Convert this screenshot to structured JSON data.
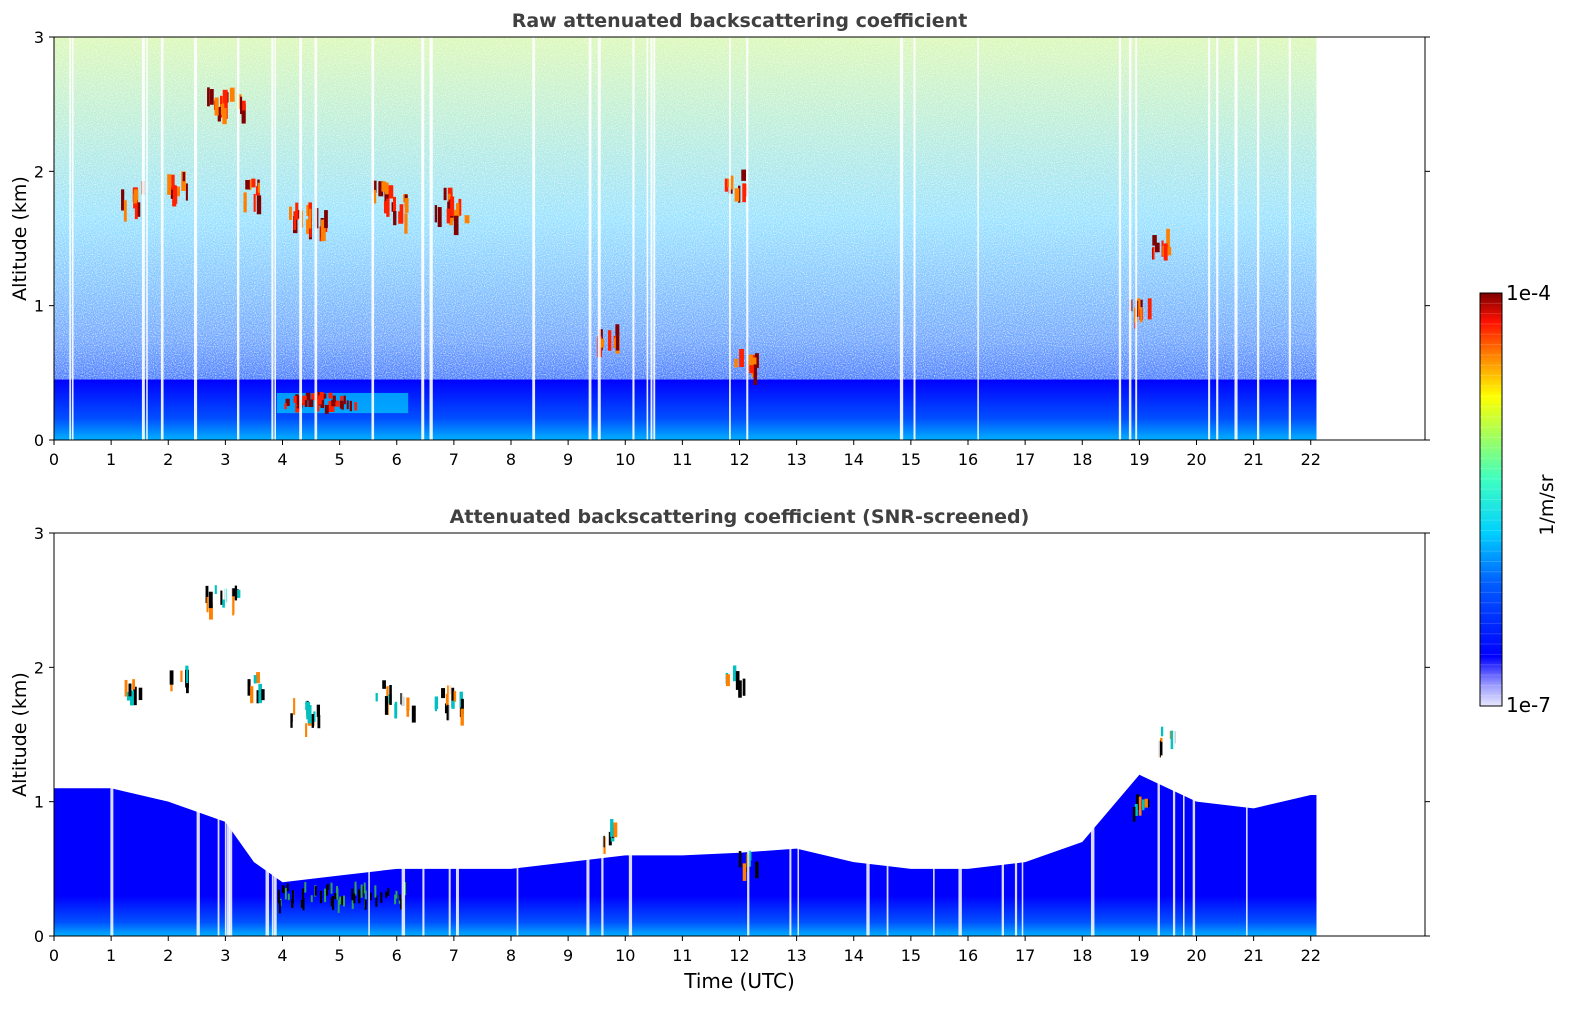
{
  "chart_data": [
    {
      "type": "heatmap",
      "title": "Raw attenuated backscattering coefficient",
      "xlabel": "",
      "ylabel": "Altitude (km)",
      "xlim": [
        0,
        24
      ],
      "ylim": [
        0,
        3
      ],
      "xticks": [
        "0",
        "1",
        "2",
        "3",
        "4",
        "5",
        "6",
        "7",
        "8",
        "9",
        "10",
        "11",
        "12",
        "13",
        "14",
        "15",
        "16",
        "17",
        "18",
        "19",
        "20",
        "21",
        "22"
      ],
      "yticks": [
        "0",
        "1",
        "2",
        "3"
      ],
      "data_extent_hours": [
        0,
        22.1
      ],
      "colormap": "jet",
      "color_scale": "log",
      "color_range": [
        "1e-7",
        "1e-4"
      ],
      "features": {
        "boundary_layer_top_km": 0.45,
        "elevated_aerosol_layer": {
          "x_range": [
            3.9,
            6.2
          ],
          "altitude_km": [
            0.2,
            0.35
          ]
        },
        "cloud_patches": [
          {
            "x": 1.35,
            "y": 1.85
          },
          {
            "x": 2.15,
            "y": 1.95
          },
          {
            "x": 2.8,
            "y": 2.55
          },
          {
            "x": 3.1,
            "y": 2.55
          },
          {
            "x": 3.5,
            "y": 1.9
          },
          {
            "x": 4.3,
            "y": 1.7
          },
          {
            "x": 4.55,
            "y": 1.65
          },
          {
            "x": 5.7,
            "y": 1.85
          },
          {
            "x": 6.1,
            "y": 1.75
          },
          {
            "x": 6.8,
            "y": 1.8
          },
          {
            "x": 7.0,
            "y": 1.75
          },
          {
            "x": 9.65,
            "y": 0.8
          },
          {
            "x": 11.9,
            "y": 1.95
          },
          {
            "x": 12.1,
            "y": 0.6
          },
          {
            "x": 19.0,
            "y": 1.0
          },
          {
            "x": 19.4,
            "y": 1.5
          }
        ]
      }
    },
    {
      "type": "heatmap",
      "title": "Attenuated backscattering coefficient (SNR-screened)",
      "xlabel": "Time (UTC)",
      "ylabel": "Altitude (km)",
      "xlim": [
        0,
        24
      ],
      "ylim": [
        0,
        3
      ],
      "xticks": [
        "0",
        "1",
        "2",
        "3",
        "4",
        "5",
        "6",
        "7",
        "8",
        "9",
        "10",
        "11",
        "12",
        "13",
        "14",
        "15",
        "16",
        "17",
        "18",
        "19",
        "20",
        "21",
        "22"
      ],
      "yticks": [
        "0",
        "1",
        "2",
        "3"
      ],
      "data_extent_hours": [
        0,
        22.1
      ],
      "colormap": "jet",
      "color_scale": "log",
      "color_range": [
        "1e-7",
        "1e-4"
      ],
      "features": {
        "screened_layer_top_km": [
          [
            0,
            1.1
          ],
          [
            1,
            1.1
          ],
          [
            2,
            1.0
          ],
          [
            3,
            0.85
          ],
          [
            3.5,
            0.55
          ],
          [
            4,
            0.4
          ],
          [
            5,
            0.45
          ],
          [
            6,
            0.5
          ],
          [
            7,
            0.5
          ],
          [
            8,
            0.5
          ],
          [
            9,
            0.55
          ],
          [
            10,
            0.6
          ],
          [
            11,
            0.6
          ],
          [
            12,
            0.62
          ],
          [
            13,
            0.65
          ],
          [
            14,
            0.55
          ],
          [
            15,
            0.5
          ],
          [
            16,
            0.5
          ],
          [
            17,
            0.55
          ],
          [
            18,
            0.7
          ],
          [
            19,
            1.2
          ],
          [
            20,
            1.0
          ],
          [
            21,
            0.95
          ],
          [
            22,
            1.05
          ]
        ]
      }
    }
  ],
  "colorbar": {
    "label": "1/m/sr",
    "max_label": "1e-4",
    "min_label": "1e-7"
  },
  "colors": {
    "low": "#e8e8ff",
    "blue": "#0000ff",
    "cyan": "#00c8ff",
    "green": "#7fff7f",
    "yellow": "#ffff00",
    "red": "#ff2000",
    "dark_red": "#7f0000"
  }
}
